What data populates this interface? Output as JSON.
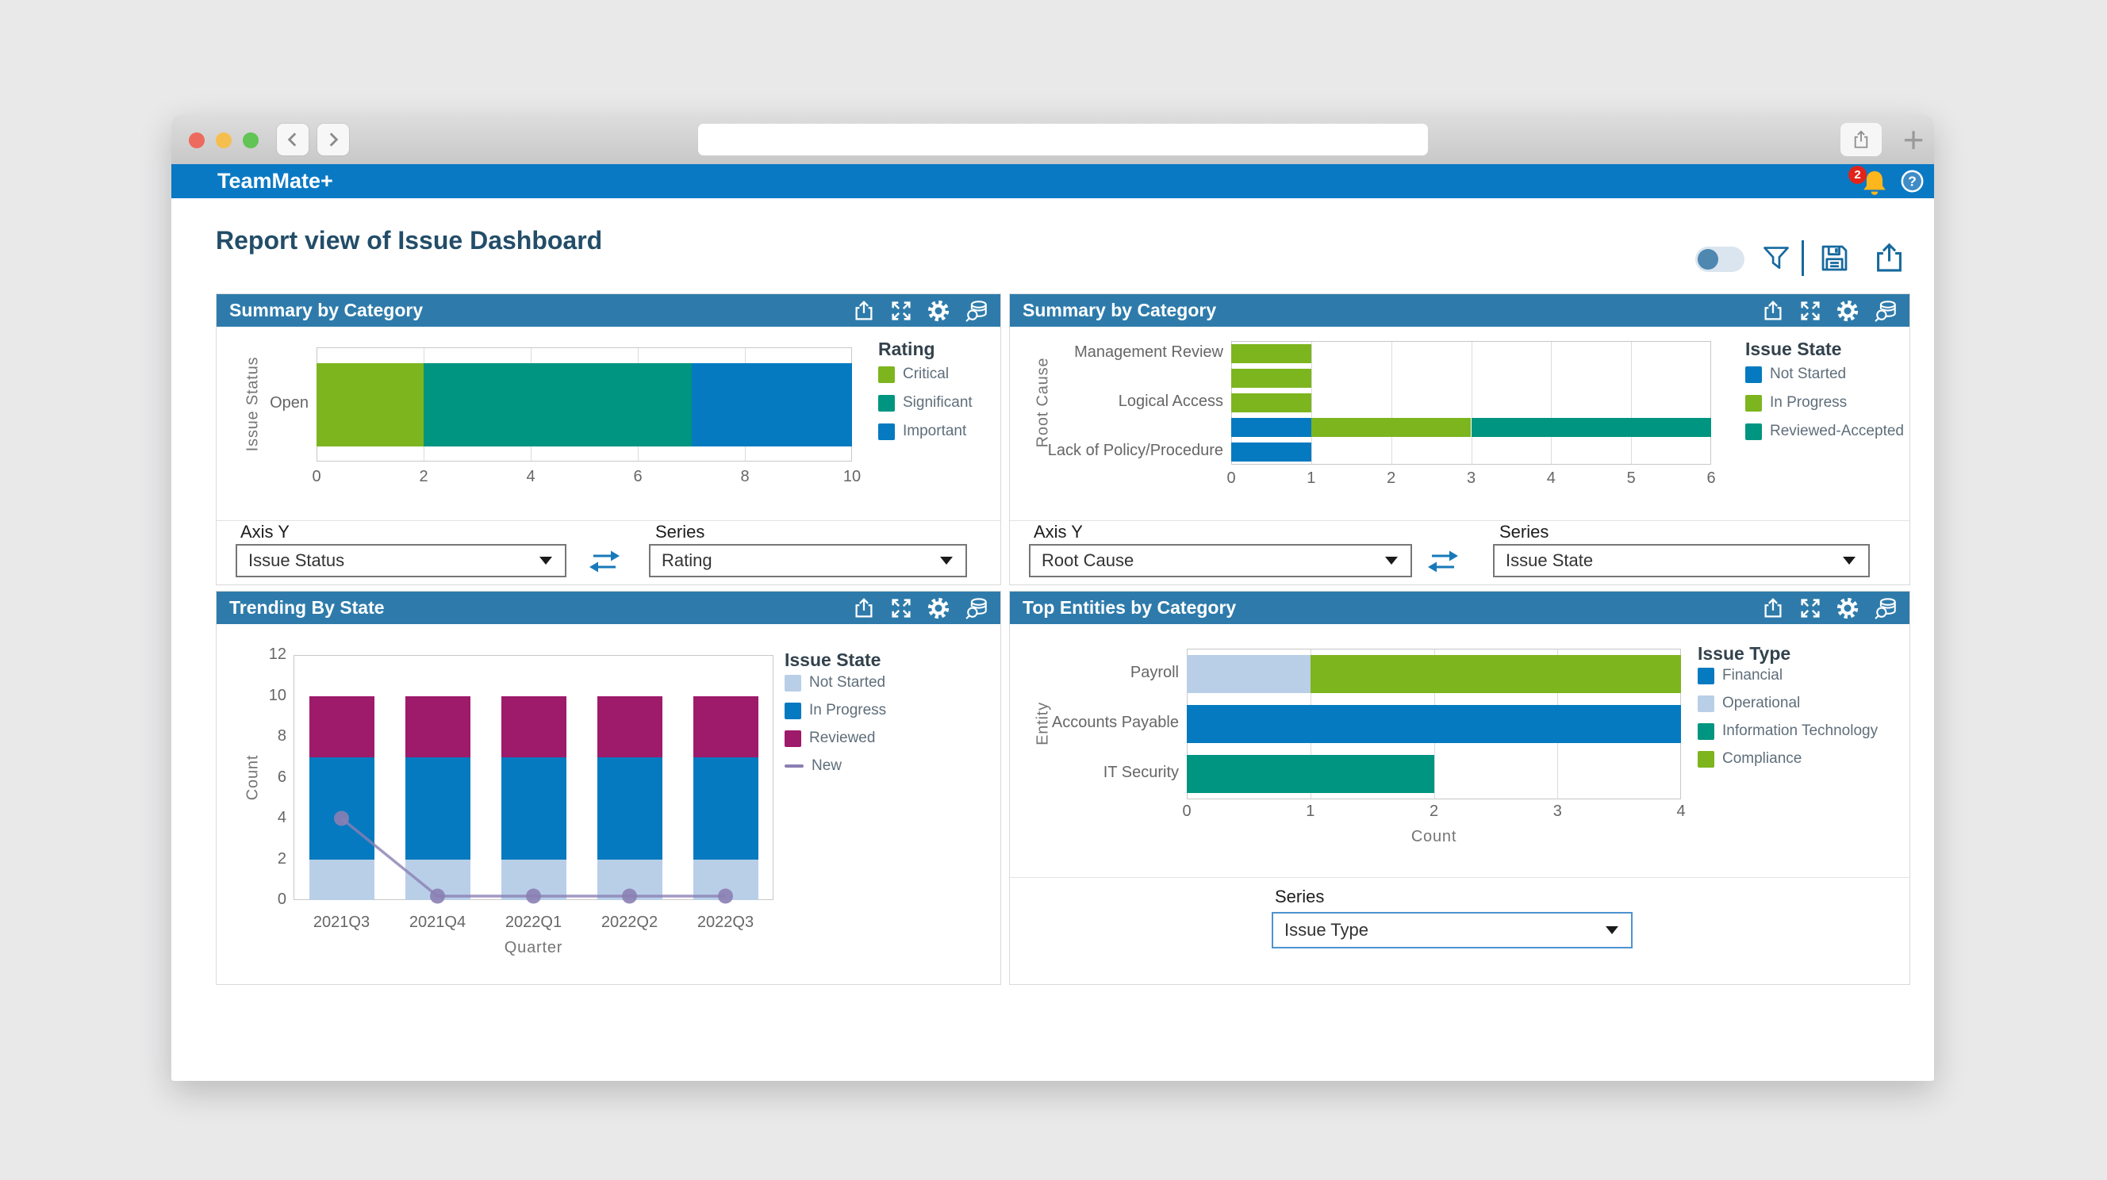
{
  "ui": {
    "accent_blue": "#0a79c4",
    "panel_header_blue": "#2e7bab",
    "toolbar_icon_blue": "#16699e"
  },
  "browser": {
    "url_value": ""
  },
  "app_bar": {
    "title": "TeamMate+",
    "notification_count": "2",
    "help_label": "?"
  },
  "page": {
    "title": "Report view of Issue Dashboard"
  },
  "panels": [
    {
      "title": "Summary by Category",
      "controls": {
        "axis_y_label": "Axis Y",
        "axis_y_value": "Issue Status",
        "series_label": "Series",
        "series_value": "Rating"
      }
    },
    {
      "title": "Summary by Category",
      "controls": {
        "axis_y_label": "Axis Y",
        "axis_y_value": "Root Cause",
        "series_label": "Series",
        "series_value": "Issue State"
      }
    },
    {
      "title": "Trending By State",
      "controls": {}
    },
    {
      "title": "Top Entities by Category",
      "controls": {
        "series_label": "Series",
        "series_value": "Issue Type"
      }
    }
  ],
  "chart_data": [
    {
      "type": "bar",
      "orientation": "horizontal",
      "stacked": true,
      "title": "Summary by Category",
      "legend_title": "Rating",
      "legend_position": "right",
      "y_axis_title": "Issue Status",
      "x_axis_title": "",
      "categories": [
        "Open"
      ],
      "series": [
        {
          "name": "Critical",
          "color": "#7db51f",
          "values": [
            2
          ]
        },
        {
          "name": "Significant",
          "color": "#009580",
          "values": [
            5
          ]
        },
        {
          "name": "Important",
          "color": "#057ac0",
          "values": [
            3
          ]
        }
      ],
      "xlim": [
        0,
        10
      ],
      "xticks": [
        0,
        2,
        4,
        6,
        8,
        10
      ],
      "grid": "vertical"
    },
    {
      "type": "bar",
      "orientation": "horizontal",
      "stacked": true,
      "title": "Summary by Category",
      "legend_title": "Issue State",
      "legend_position": "right",
      "y_axis_title": "Root Cause",
      "x_axis_title": "",
      "categories": [
        "Management Review",
        "",
        "Logical Access",
        "",
        "Lack of Policy/Procedure"
      ],
      "series": [
        {
          "name": "Not Started",
          "color": "#057ac0",
          "values": [
            0,
            0,
            0,
            1,
            1
          ]
        },
        {
          "name": "In Progress",
          "color": "#7db51f",
          "values": [
            1,
            1,
            1,
            2,
            0
          ]
        },
        {
          "name": "Reviewed-Accepted",
          "color": "#009580",
          "values": [
            0,
            0,
            0,
            3,
            0
          ]
        }
      ],
      "xlim": [
        0,
        6
      ],
      "xticks": [
        0,
        1,
        2,
        3,
        4,
        5,
        6
      ],
      "grid": "vertical"
    },
    {
      "type": "bar+line",
      "orientation": "vertical",
      "stacked": true,
      "title": "Trending By State",
      "legend_title": "Issue State",
      "legend_position": "right",
      "x_axis_title": "Quarter",
      "y_axis_title": "Count",
      "categories": [
        "2021Q3",
        "2021Q4",
        "2022Q1",
        "2022Q2",
        "2022Q3"
      ],
      "series": [
        {
          "name": "Not Started",
          "color": "#b9cfe8",
          "values": [
            2,
            2,
            2,
            2,
            2
          ]
        },
        {
          "name": "In Progress",
          "color": "#057ac0",
          "values": [
            5,
            5,
            5,
            5,
            5
          ]
        },
        {
          "name": "Reviewed",
          "color": "#9e1a6a",
          "values": [
            3,
            3,
            3,
            3,
            3
          ]
        }
      ],
      "line_series": {
        "name": "New",
        "color": "#8b7fb3",
        "values": [
          4,
          0,
          0,
          0,
          0
        ]
      },
      "ylim": [
        0,
        12
      ],
      "yticks": [
        0,
        2,
        4,
        6,
        8,
        10,
        12
      ],
      "grid": "none"
    },
    {
      "type": "bar",
      "orientation": "horizontal",
      "stacked": true,
      "title": "Top Entities by Category",
      "legend_title": "Issue Type",
      "legend_position": "right",
      "y_axis_title": "Entity",
      "x_axis_title": "Count",
      "categories": [
        "Payroll",
        "Accounts Payable",
        "IT Security"
      ],
      "series": [
        {
          "name": "Financial",
          "color": "#057ac0",
          "values": [
            0,
            4,
            0
          ]
        },
        {
          "name": "Operational",
          "color": "#b9cfe8",
          "values": [
            1,
            0,
            0
          ]
        },
        {
          "name": "Information Technology",
          "color": "#009580",
          "values": [
            0,
            0,
            2
          ]
        },
        {
          "name": "Compliance",
          "color": "#7db51f",
          "values": [
            3,
            0,
            0
          ]
        }
      ],
      "xlim": [
        0,
        4
      ],
      "xticks": [
        0,
        1,
        2,
        3,
        4
      ],
      "grid": "vertical"
    }
  ]
}
